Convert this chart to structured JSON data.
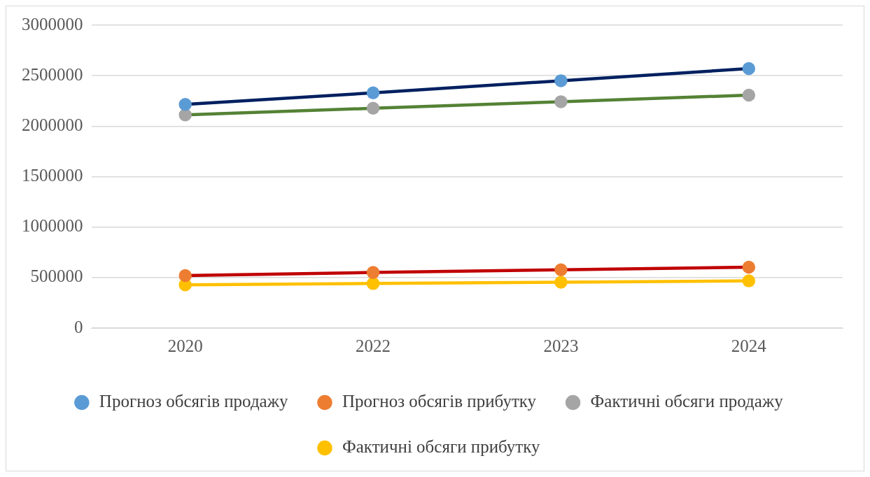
{
  "chart_data": {
    "type": "line",
    "categories": [
      "2020",
      "2022",
      "2023",
      "2024"
    ],
    "series": [
      {
        "name": "Прогноз обсягів продажу",
        "color": "#002060",
        "colors": [
          "#5b9bd5",
          "#5b9bd5",
          "#5b9bd5",
          "#5b9bd5"
        ],
        "values": [
          2215000,
          2330000,
          2450000,
          2570000
        ]
      },
      {
        "name": "Прогноз обсягів прибутку",
        "color": "#c00000",
        "colors": [
          "#ed7d31",
          "#ed7d31",
          "#ed7d31",
          "#ed7d31"
        ],
        "values": [
          520000,
          550000,
          577000,
          603000
        ]
      },
      {
        "name": "Фактичні обсяги продажу",
        "color": "#548235",
        "colors": [
          "#a5a5a5",
          "#a5a5a5",
          "#a5a5a5",
          "#a5a5a5"
        ],
        "values": [
          2112000,
          2177000,
          2242000,
          2307000
        ]
      },
      {
        "name": "Фактичні обсяги прибутку",
        "color": "#ffc000",
        "colors": [
          "#ffc000",
          "#ffc000",
          "#ffc000",
          "#ffc000"
        ],
        "values": [
          428000,
          441000,
          454000,
          467000
        ]
      }
    ],
    "ylim": [
      0,
      3000000
    ],
    "yticks": [
      0,
      500000,
      1000000,
      1500000,
      2000000,
      2500000,
      3000000
    ],
    "grid": "y",
    "legend": "bottom",
    "marker": "circle",
    "line_style": "solid"
  }
}
